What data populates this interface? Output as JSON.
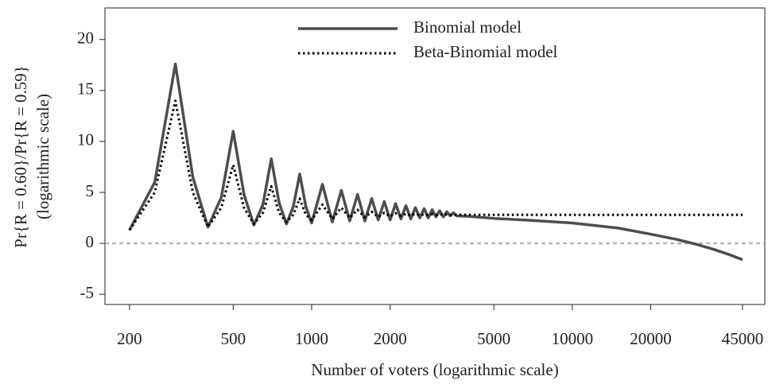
{
  "chart_data": {
    "type": "line",
    "xlabel": "Number of voters (logarithmic scale)",
    "ylabel": [
      "Pr{R = 0.60}/Pr{R = 0.59}",
      "(logarithmic scale)"
    ],
    "xscale": "log",
    "x": [
      200,
      250,
      300,
      350,
      400,
      450,
      500,
      550,
      600,
      650,
      700,
      750,
      800,
      850,
      900,
      950,
      1000,
      1100,
      1200,
      1300,
      1400,
      1500,
      1600,
      1700,
      1800,
      1900,
      2000,
      2100,
      2200,
      2300,
      2400,
      2500,
      2600,
      2700,
      2800,
      2900,
      3000,
      3100,
      3200,
      3300,
      3400,
      3500,
      3600,
      4000,
      5000,
      7000,
      10000,
      15000,
      20000,
      25000,
      30000,
      35000,
      40000,
      45000
    ],
    "series": [
      {
        "name": "Binomial model",
        "color": "#4d4d4d",
        "dash": "solid",
        "values": [
          1.3,
          6,
          17.6,
          6.5,
          1.6,
          4.5,
          11,
          4.8,
          1.8,
          3.8,
          8.3,
          4.0,
          1.9,
          3.6,
          6.8,
          3.6,
          2.0,
          5.8,
          2.1,
          5.2,
          2.2,
          4.8,
          2.2,
          4.4,
          2.3,
          4.1,
          2.3,
          3.9,
          2.4,
          3.7,
          2.4,
          3.5,
          2.5,
          3.4,
          2.5,
          3.3,
          2.6,
          3.2,
          2.6,
          3.1,
          2.7,
          3.0,
          2.7,
          2.65,
          2.45,
          2.25,
          2.0,
          1.5,
          0.9,
          0.4,
          -0.1,
          -0.6,
          -1.1,
          -1.6
        ]
      },
      {
        "name": "Beta-Binomial model",
        "color": "#000000",
        "dash": "dotted",
        "values": [
          1.3,
          5,
          14,
          5,
          1.6,
          3.5,
          7.7,
          3.5,
          1.9,
          3,
          5.6,
          3,
          2.1,
          2.8,
          4.4,
          2.8,
          2.3,
          3.8,
          2.4,
          3.5,
          2.5,
          3.3,
          2.55,
          3.1,
          2.6,
          3.0,
          2.65,
          2.95,
          2.7,
          2.9,
          2.72,
          2.9,
          2.75,
          2.85,
          2.77,
          2.85,
          2.78,
          2.85,
          2.79,
          2.82,
          2.8,
          2.8,
          2.8,
          2.8,
          2.8,
          2.8,
          2.8,
          2.8,
          2.8,
          2.8,
          2.8,
          2.8,
          2.8,
          2.8
        ]
      }
    ],
    "xlim": [
      161,
      54800
    ],
    "xticks": [
      200,
      500,
      1000,
      2000,
      5000,
      10000,
      20000,
      45000
    ],
    "ylim": [
      -6,
      23.1
    ],
    "yticks": [
      -5,
      0,
      5,
      10,
      15,
      20
    ],
    "reference_line": 0,
    "legend": "top"
  }
}
